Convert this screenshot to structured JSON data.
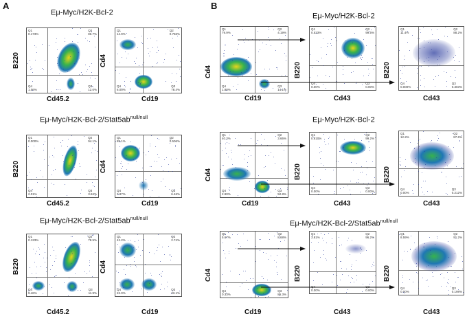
{
  "panel_letters": {
    "a": "A",
    "b": "B"
  },
  "colors": {
    "dots": "#2c3d9e",
    "core_hot": "#e6d51c",
    "core_warm": "#37b24d",
    "core_cool": "#1f77b4"
  },
  "panel_a": {
    "rows": [
      {
        "title": "Eμ-Myc/H2K-Bcl-2",
        "title_sup": "",
        "left": {
          "x_label": "Cd45.2",
          "y_label": "B220",
          "q1": "Q1\n0.173%",
          "q2": "Q2\n86.7%",
          "q3": "Q3\n12.0%",
          "q4": "Q4\n1.06%"
        },
        "right": {
          "x_label": "Cd19",
          "y_label": "Cd4",
          "q1": "Q1\n14.9%",
          "q2": "Q2\n0.766%",
          "q3": "Q3\n78.4%",
          "q4": "Q4\n6.00%"
        }
      },
      {
        "title": "Eμ-Myc/H2K-Bcl-2/Stat5ab",
        "title_sup": "null/null",
        "left": {
          "x_label": "Cd45.2",
          "y_label": "B220",
          "q1": "Q1\n0.000%",
          "q2": "Q2\n94.1%",
          "q3": "Q3\n3.84%",
          "q4": "Q4\n2.01%"
        },
        "right": {
          "x_label": "Cd19",
          "y_label": "Cd4",
          "q1": "Q1\n89.1%",
          "q2": "Q2\n0.506%",
          "q3": "Q3\n6.46%",
          "q4": "Q4\n3.87%"
        }
      },
      {
        "title": "Eμ-Myc/H2K-Bcl-2/Stat5ab",
        "title_sup": "null/null",
        "left": {
          "x_label": "Cd45.2",
          "y_label": "B220",
          "q1": "Q1\n0.123%",
          "q2": "Q2\n78.5%",
          "q3": "Q3\n11.9%",
          "q4": "Q4\n9.46%"
        },
        "right": {
          "x_label": "Cd19",
          "y_label": "Cd4",
          "q1": "Q1\n42.2%",
          "q2": "Q2\n2.74%",
          "q3": "Q3\n33.1%",
          "q4": "Q4\n22.0%"
        }
      }
    ]
  },
  "panel_b": {
    "rows": [
      {
        "title": "Eμ-Myc/H2K-Bcl-2",
        "title_sup": "",
        "gate": {
          "x_label": "Cd19",
          "y_label": "Cd4",
          "q1": "Q1\n79.9%",
          "q2": "Q2\n4.19%",
          "q3": "Q3\n14.1%",
          "q4": "Q4\n1.88%"
        },
        "top": {
          "x_label": "Cd43",
          "y_label": "B220",
          "q1": "Q1\n0.533%",
          "q2": "Q2\n99.5%",
          "q3": "Q3\n0.00%",
          "q4": "Q4\n0.00%"
        },
        "bottom": {
          "x_label": "Cd43",
          "y_label": "B220",
          "q1": "Q1\n11.4%",
          "q2": "Q2\n88.2%",
          "q3": "Q3\n0.303%",
          "q4": "Q4\n0.000%"
        }
      },
      {
        "title": "Eμ-Myc/H2K-Bcl-2",
        "title_sup": "",
        "gate": {
          "x_label": "Cd19",
          "y_label": "Cd4",
          "q1": "Q1\n40.3%",
          "q2": "Q2\n3.66%",
          "q3": "Q3\n52.8%",
          "q4": "Q4\n2.90%"
        },
        "top": {
          "x_label": "Cd43",
          "y_label": "B220",
          "q1": "Q1\n0.810%",
          "q2": "Q2\n99.2%",
          "q3": "Q3\n0.00%",
          "q4": "Q4\n0.00%"
        },
        "bottom": {
          "x_label": "Cd43",
          "y_label": "B220",
          "q1": "Q1\n12.2%",
          "q2": "Q2\n87.6%",
          "q3": "Q3\n0.212%",
          "q4": "Q4\n0.00%"
        }
      },
      {
        "title": "Eμ-Myc/H2K-Bcl-2/Stat5ab",
        "title_sup": "null/null",
        "gate": {
          "x_label": "Cd19",
          "y_label": "Cd4",
          "q1": "Q1\n5.67%",
          "q2": "Q2\n8.68%",
          "q3": "Q3\n86.3%",
          "q4": "Q4\n0.33%"
        },
        "top": {
          "x_label": "Cd43",
          "y_label": "B220",
          "q1": "Q1\n3.81%",
          "q2": "Q2\n96.2%",
          "q3": "Q3\n0.00%",
          "q4": "Q4\n0.00%"
        },
        "bottom": {
          "x_label": "Cd43",
          "y_label": "B220",
          "q1": "Q1\n8.59%",
          "q2": "Q2\n91.2%",
          "q3": "Q3\n0.198%",
          "q4": "Q4\n0.00%"
        }
      }
    ]
  }
}
